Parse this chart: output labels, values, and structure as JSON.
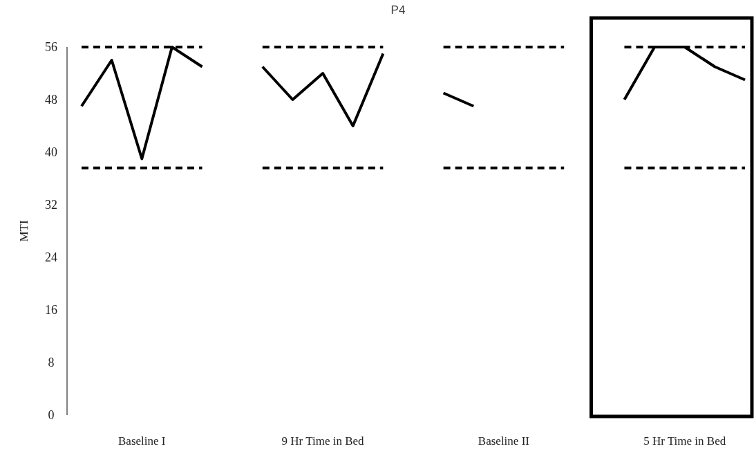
{
  "chart_data": {
    "type": "line",
    "title": "P4",
    "ylabel": "MTI",
    "categories": [
      null,
      null,
      "Baseline I",
      null,
      null,
      null,
      null,
      null,
      "9 Hr Time in Bed",
      null,
      null,
      null,
      null,
      null,
      "Baseline II",
      null,
      null,
      null,
      null,
      null,
      "5 Hr Time in Bed",
      null,
      null
    ],
    "series": [
      {
        "color": "#000000",
        "line_style": "solid",
        "values": [
          47,
          54,
          39,
          56,
          53,
          null,
          53,
          48,
          52,
          44,
          55,
          null,
          49,
          47,
          null,
          null,
          null,
          null,
          48,
          56,
          56,
          53,
          51
        ]
      },
      {
        "color": "#000000",
        "line_style": "dashed",
        "values": [
          56,
          56,
          56,
          56,
          56,
          null,
          56,
          56,
          56,
          56,
          56,
          null,
          56,
          56,
          56,
          56,
          56,
          null,
          56,
          56,
          56,
          56,
          56
        ]
      },
      {
        "color": "#000000",
        "line_style": "dashed",
        "values": [
          37.6,
          37.6,
          37.6,
          37.6,
          37.6,
          null,
          37.6,
          37.6,
          37.6,
          37.6,
          37.6,
          null,
          37.6,
          37.6,
          37.6,
          37.6,
          37.6,
          null,
          37.6,
          37.6,
          37.6,
          37.6,
          37.6
        ]
      }
    ],
    "ylim": [
      0,
      56
    ],
    "yticks": [
      0,
      8,
      16,
      24,
      32,
      40,
      48,
      56
    ],
    "grid": false,
    "marker": "none"
  }
}
